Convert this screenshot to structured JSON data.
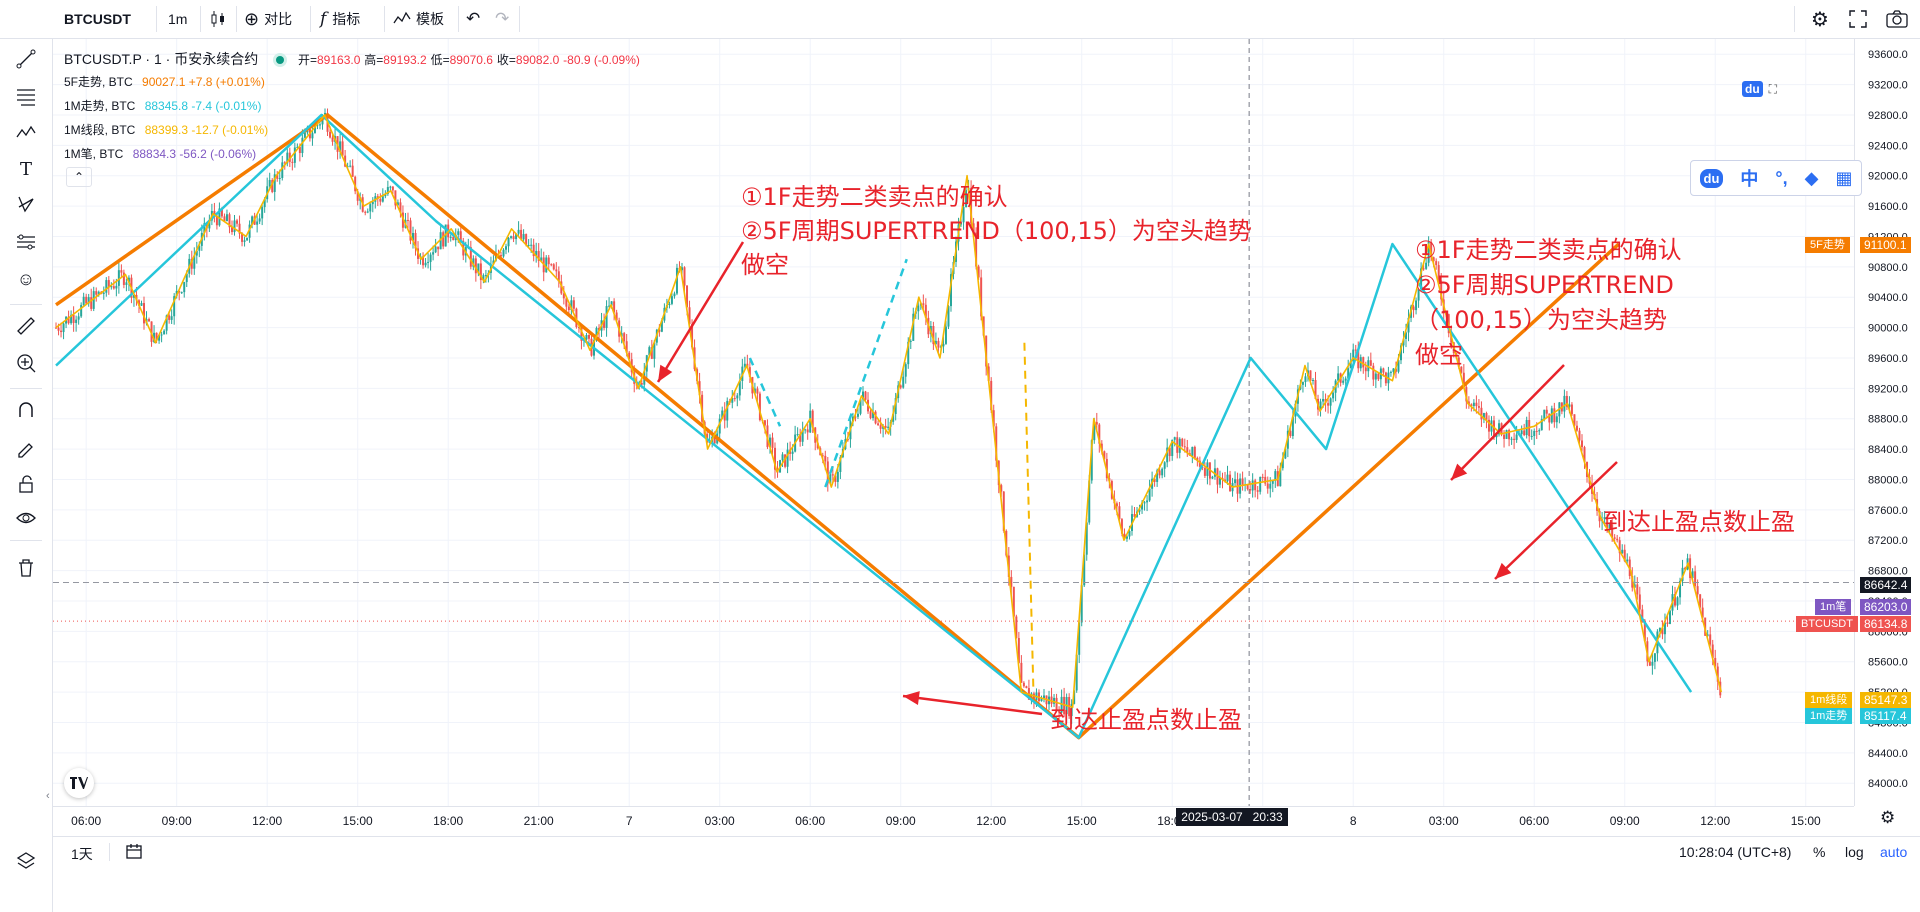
{
  "toolbar": {
    "symbol": "BTCUSDT",
    "interval": "1m",
    "compare": "对比",
    "indicators": "指标",
    "templates": "模板",
    "fx": "f"
  },
  "legend": {
    "title": "BTCUSDT.P · 1 · 币安永续合约",
    "ohlc_open_label": "开=",
    "ohlc_open": "89163.0",
    "ohlc_high_label": "高=",
    "ohlc_high": "89193.2",
    "ohlc_low_label": "低=",
    "ohlc_low": "89070.6",
    "ohlc_close_label": "收=",
    "ohlc_close": "89082.0",
    "ohlc_change": "-80.9 (-0.09%)",
    "studies": [
      {
        "name": "5F走势, BTC",
        "value": "90027.1",
        "change": "+7.8 (+0.01%)",
        "color": "#f57c00"
      },
      {
        "name": "1M走势, BTC",
        "value": "88345.8",
        "change": "-7.4 (-0.01%)",
        "color": "#26c6da"
      },
      {
        "name": "1M线段, BTC",
        "value": "88399.3",
        "change": "-12.7 (-0.01%)",
        "color": "#f5b700"
      },
      {
        "name": "1M笔, BTC",
        "value": "88834.3",
        "change": "-56.2 (-0.06%)",
        "color": "#7e57c2"
      }
    ]
  },
  "annotations": {
    "left_note": "①1F走势二类卖点的确认\n②5F周期SUPERTREND（100,15）为空头趋势\n做空",
    "right_note": "①1F走势二类卖点的确认\n②5F周期SUPERTREND\n（100,15）为空头趋势\n做空",
    "tp1": "到达止盈点数止盈",
    "tp2": "到达止盈点数止盈"
  },
  "price_labels": [
    {
      "text": "5F走势",
      "value": "91100.1",
      "color": "#f57c00"
    },
    {
      "text": "",
      "value": "86642.4",
      "color": "#131722"
    },
    {
      "text": "1m笔",
      "value": "86203.0",
      "color": "#7e57c2"
    },
    {
      "text": "BTCUSDT",
      "value": "86134.8",
      "color": "#ef5350"
    },
    {
      "text": "1m线段",
      "value": "85147.3",
      "color": "#f5b700"
    },
    {
      "text": "1m走势",
      "value": "85117.4",
      "color": "#26c6da"
    }
  ],
  "crosshair_time": "2025-03-07   20:33",
  "bottom": {
    "range": "1天",
    "clock": "10:28:04 (UTC+8)",
    "percent": "%",
    "log": "log",
    "auto": "auto"
  },
  "baidu_widget": {
    "du": "du",
    "zh": "中",
    "dot": "°,"
  },
  "chart_data": {
    "type": "line",
    "title": "BTCUSDT.P · 1 · 币安永续合约",
    "ylim": [
      83700,
      93800
    ],
    "y_ticks": [
      93600,
      93200,
      92800,
      92400,
      92000,
      91600,
      91200,
      90800,
      90400,
      90000,
      89600,
      89200,
      88800,
      88400,
      88000,
      87600,
      87200,
      86800,
      86400,
      86000,
      85600,
      85200,
      84800,
      84400,
      84000
    ],
    "x_ticks": [
      "06:00",
      "09:00",
      "12:00",
      "15:00",
      "18:00",
      "21:00",
      "7",
      "03:00",
      "06:00",
      "09:00",
      "12:00",
      "15:00",
      "18:00",
      "21:00",
      "8",
      "03:00",
      "06:00",
      "09:00",
      "12:00",
      "15:00"
    ],
    "x_hours_range": [
      -1.1,
      58.6
    ],
    "series": [
      {
        "name": "5F走势",
        "color": "#f57c00",
        "x": [
          -1,
          8,
          32.9,
          50.8
        ],
        "y": [
          90300,
          92800,
          84600,
          91100
        ]
      },
      {
        "name": "1M走势",
        "color": "#26c6da",
        "x": [
          -1,
          7.8,
          11.6,
          32.9,
          38.6,
          41.1,
          43.3,
          53.2
        ],
        "y": [
          89500,
          92800,
          91400,
          84600,
          89600,
          88400,
          91100,
          85200
        ]
      },
      {
        "name": "1M线段",
        "color": "#f5b700",
        "x": [
          -1,
          1.3,
          2.3,
          4.2,
          5.3,
          6.3,
          7.9,
          9.2,
          10.1,
          11.1,
          12.1,
          13.2,
          14.1,
          15.7,
          16.7,
          17.4,
          18.3,
          19.7,
          20.6,
          21.9,
          22.9,
          24.0,
          24.7,
          25.7,
          26.6,
          27.6,
          28.3,
          29.2,
          31.0,
          32.7,
          33.4,
          34.4,
          36.0,
          38.0,
          39.5,
          40.4,
          40.9,
          42.0,
          43.3,
          44.5,
          45.8,
          46.9,
          48.0,
          49.1,
          50.2,
          51.2,
          51.8,
          53.1,
          54.2
        ],
        "y": [
          90000,
          90700,
          89800,
          91500,
          91200,
          92000,
          92800,
          91600,
          91800,
          90900,
          91300,
          90600,
          91300,
          90600,
          89700,
          90300,
          89200,
          90800,
          88400,
          89500,
          88100,
          88800,
          87900,
          89100,
          88600,
          90400,
          89600,
          92000,
          85200,
          85000,
          88800,
          87200,
          88500,
          87900,
          88000,
          89500,
          88900,
          89600,
          89300,
          91100,
          89000,
          88600,
          88700,
          89000,
          87500,
          86800,
          85600,
          86900,
          85200
        ]
      },
      {
        "name": "1M笔",
        "color": "#7e57c2"
      },
      {
        "name": "BTCUSDT",
        "color": "#ef5350"
      }
    ],
    "horizontal_levels": [
      86642.4,
      86134.8
    ],
    "crosshair_x_hours": 38.55
  }
}
